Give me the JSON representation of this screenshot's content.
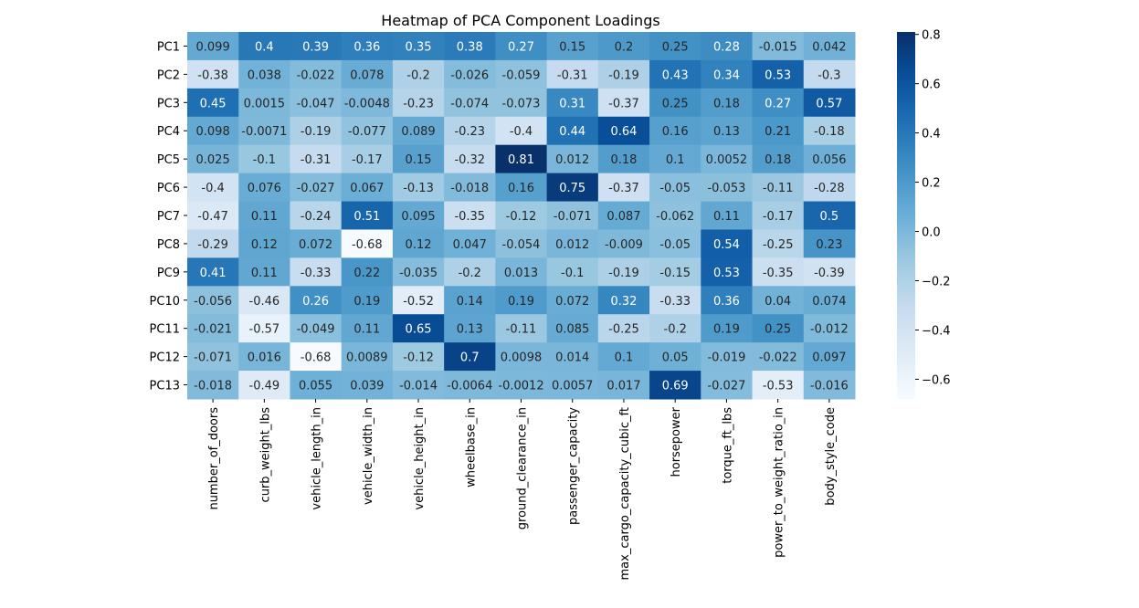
{
  "chart_data": {
    "type": "heatmap",
    "title": "Heatmap of PCA Component Loadings",
    "xlabel": "",
    "ylabel": "",
    "rows": [
      "PC1",
      "PC2",
      "PC3",
      "PC4",
      "PC5",
      "PC6",
      "PC7",
      "PC8",
      "PC9",
      "PC10",
      "PC11",
      "PC12",
      "PC13"
    ],
    "columns": [
      "number_of_doors",
      "curb_weight_lbs",
      "vehicle_length_in",
      "vehicle_width_in",
      "vehicle_height_in",
      "wheelbase_in",
      "ground_clearance_in",
      "passenger_capacity",
      "max_cargo_capacity_cubic_ft",
      "horsepower",
      "torque_ft_lbs",
      "power_to_weight_ratio_in",
      "body_style_code"
    ],
    "values": [
      [
        0.099,
        0.4,
        0.39,
        0.36,
        0.35,
        0.38,
        0.27,
        0.15,
        0.2,
        0.25,
        0.28,
        -0.015,
        0.042
      ],
      [
        -0.38,
        0.038,
        -0.022,
        0.078,
        -0.2,
        -0.026,
        -0.059,
        -0.31,
        -0.19,
        0.43,
        0.34,
        0.53,
        -0.3
      ],
      [
        0.45,
        0.0015,
        -0.047,
        -0.0048,
        -0.23,
        -0.074,
        -0.073,
        0.31,
        -0.37,
        0.25,
        0.18,
        0.27,
        0.57
      ],
      [
        0.098,
        -0.0071,
        -0.19,
        -0.077,
        0.089,
        -0.23,
        -0.4,
        0.44,
        0.64,
        0.16,
        0.13,
        0.21,
        -0.18
      ],
      [
        0.025,
        -0.1,
        -0.31,
        -0.17,
        0.15,
        -0.32,
        0.81,
        0.012,
        0.18,
        0.1,
        0.0052,
        0.18,
        0.056
      ],
      [
        -0.4,
        0.076,
        -0.027,
        0.067,
        -0.13,
        -0.018,
        0.16,
        0.75,
        -0.37,
        -0.05,
        -0.053,
        -0.11,
        -0.28
      ],
      [
        -0.47,
        0.11,
        -0.24,
        0.51,
        0.095,
        -0.35,
        -0.12,
        -0.071,
        0.087,
        -0.062,
        0.11,
        -0.17,
        0.5
      ],
      [
        -0.29,
        0.12,
        0.072,
        -0.68,
        0.12,
        0.047,
        -0.054,
        0.012,
        -0.009,
        -0.05,
        0.54,
        -0.25,
        0.23
      ],
      [
        0.41,
        0.11,
        -0.33,
        0.22,
        -0.035,
        -0.2,
        0.013,
        -0.1,
        -0.19,
        -0.15,
        0.53,
        -0.35,
        -0.39
      ],
      [
        -0.056,
        -0.46,
        0.26,
        0.19,
        -0.52,
        0.14,
        0.19,
        0.072,
        0.32,
        -0.33,
        0.36,
        0.04,
        0.074
      ],
      [
        -0.021,
        -0.57,
        -0.049,
        0.11,
        0.65,
        0.13,
        -0.11,
        0.085,
        -0.25,
        -0.2,
        0.19,
        0.25,
        -0.012
      ],
      [
        -0.071,
        0.016,
        -0.68,
        0.0089,
        -0.12,
        0.7,
        0.0098,
        0.014,
        0.1,
        0.05,
        -0.019,
        -0.022,
        0.097
      ],
      [
        -0.018,
        -0.49,
        0.055,
        0.039,
        -0.014,
        -0.0064,
        -0.0012,
        0.0057,
        0.017,
        0.69,
        -0.027,
        -0.53,
        -0.016
      ]
    ],
    "value_labels": [
      [
        "0.099",
        "0.4",
        "0.39",
        "0.36",
        "0.35",
        "0.38",
        "0.27",
        "0.15",
        "0.2",
        "0.25",
        "0.28",
        "-0.015",
        "0.042"
      ],
      [
        "-0.38",
        "0.038",
        "-0.022",
        "0.078",
        "-0.2",
        "-0.026",
        "-0.059",
        "-0.31",
        "-0.19",
        "0.43",
        "0.34",
        "0.53",
        "-0.3"
      ],
      [
        "0.45",
        "0.0015",
        "-0.047",
        "-0.0048",
        "-0.23",
        "-0.074",
        "-0.073",
        "0.31",
        "-0.37",
        "0.25",
        "0.18",
        "0.27",
        "0.57"
      ],
      [
        "0.098",
        "-0.0071",
        "-0.19",
        "-0.077",
        "0.089",
        "-0.23",
        "-0.4",
        "0.44",
        "0.64",
        "0.16",
        "0.13",
        "0.21",
        "-0.18"
      ],
      [
        "0.025",
        "-0.1",
        "-0.31",
        "-0.17",
        "0.15",
        "-0.32",
        "0.81",
        "0.012",
        "0.18",
        "0.1",
        "0.0052",
        "0.18",
        "0.056"
      ],
      [
        "-0.4",
        "0.076",
        "-0.027",
        "0.067",
        "-0.13",
        "-0.018",
        "0.16",
        "0.75",
        "-0.37",
        "-0.05",
        "-0.053",
        "-0.11",
        "-0.28"
      ],
      [
        "-0.47",
        "0.11",
        "-0.24",
        "0.51",
        "0.095",
        "-0.35",
        "-0.12",
        "-0.071",
        "0.087",
        "-0.062",
        "0.11",
        "-0.17",
        "0.5"
      ],
      [
        "-0.29",
        "0.12",
        "0.072",
        "-0.68",
        "0.12",
        "0.047",
        "-0.054",
        "0.012",
        "-0.009",
        "-0.05",
        "0.54",
        "-0.25",
        "0.23"
      ],
      [
        "0.41",
        "0.11",
        "-0.33",
        "0.22",
        "-0.035",
        "-0.2",
        "0.013",
        "-0.1",
        "-0.19",
        "-0.15",
        "0.53",
        "-0.35",
        "-0.39"
      ],
      [
        "-0.056",
        "-0.46",
        "0.26",
        "0.19",
        "-0.52",
        "0.14",
        "0.19",
        "0.072",
        "0.32",
        "-0.33",
        "0.36",
        "0.04",
        "0.074"
      ],
      [
        "-0.021",
        "-0.57",
        "-0.049",
        "0.11",
        "0.65",
        "0.13",
        "-0.11",
        "0.085",
        "-0.25",
        "-0.2",
        "0.19",
        "0.25",
        "-0.012"
      ],
      [
        "-0.071",
        "0.016",
        "-0.68",
        "0.0089",
        "-0.12",
        "0.7",
        "0.0098",
        "0.014",
        "0.1",
        "0.05",
        "-0.019",
        "-0.022",
        "0.097"
      ],
      [
        "-0.018",
        "-0.49",
        "0.055",
        "0.039",
        "-0.014",
        "-0.0064",
        "-0.0012",
        "0.0057",
        "0.017",
        "0.69",
        "-0.027",
        "-0.53",
        "-0.016"
      ]
    ],
    "colormap": "Blues",
    "vmin": -0.68,
    "vmax": 0.81,
    "colorbar_ticks": [
      0.8,
      0.6,
      0.4,
      0.2,
      0.0,
      -0.2,
      -0.4,
      -0.6
    ],
    "colorbar_tick_labels": [
      "0.8",
      "0.6",
      "0.4",
      "0.2",
      "0.0",
      "−0.2",
      "−0.4",
      "−0.6"
    ],
    "grid": false,
    "colors": {
      "text_dark": "#262626",
      "text_light": "#ffffff",
      "axis": "#000000"
    }
  }
}
